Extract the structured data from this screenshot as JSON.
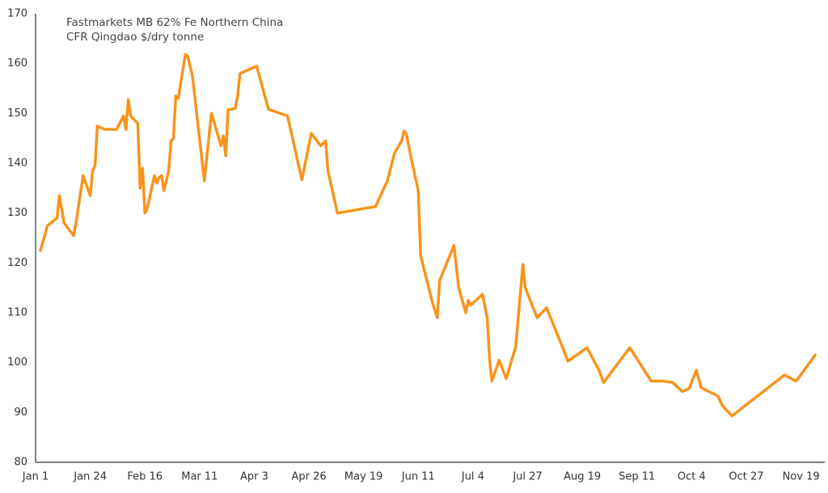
{
  "chart_data": {
    "type": "line",
    "title": [
      "Fastmarkets MB 62% Fe Northern China",
      "CFR Qingdao $/dry tonne"
    ],
    "color": "#f7941d",
    "x": [
      "Jan 3",
      "Jan 4",
      "Jan 6",
      "Jan 10",
      "Jan 11",
      "Jan 13",
      "Jan 17",
      "Jan 18",
      "Jan 21",
      "Jan 24",
      "Jan 25",
      "Jan 26",
      "Jan 27",
      "Jan 30",
      "Feb 4",
      "Feb 7",
      "Feb 8",
      "Feb 9",
      "Feb 10",
      "Feb 13",
      "Feb 14",
      "Feb 15",
      "Feb 16",
      "Feb 17",
      "Feb 20",
      "Feb 21",
      "Feb 22",
      "Feb 23",
      "Feb 24",
      "Feb 26",
      "Feb 27",
      "Feb 28",
      "Mar 1",
      "Mar 2",
      "Mar 5",
      "Mar 6",
      "Mar 8",
      "Mar 13",
      "Mar 16",
      "Mar 20",
      "Mar 21",
      "Mar 22",
      "Mar 23",
      "Mar 26",
      "Mar 27",
      "Mar 28",
      "Apr 4",
      "Apr 9",
      "Apr 17",
      "Apr 23",
      "Apr 27",
      "May 1",
      "May 3",
      "May 4",
      "May 8",
      "May 24",
      "May 29",
      "Jun 1",
      "Jun 4",
      "Jun 5",
      "Jun 6",
      "Jun 8",
      "Jun 11",
      "Jun 12",
      "Jun 17",
      "Jun 19",
      "Jun 20",
      "Jun 26",
      "Jun 28",
      "Jul 1",
      "Jul 2",
      "Jul 3",
      "Jul 8",
      "Jul 10",
      "Jul 11",
      "Jul 12",
      "Jul 15",
      "Jul 18",
      "Jul 22",
      "Jul 25",
      "Jul 26",
      "Jul 31",
      "Aug 4",
      "Aug 13",
      "Aug 21",
      "Aug 26",
      "Aug 28",
      "Sep 4",
      "Sep 8",
      "Sep 17",
      "Sep 22",
      "Sep 26",
      "Sep 30",
      "Oct 3",
      "Oct 6",
      "Oct 8",
      "Oct 15",
      "Oct 17",
      "Oct 21",
      "Nov 12",
      "Nov 17",
      "Nov 25"
    ],
    "values": [
      122.5,
      124,
      127.5,
      129,
      133.5,
      128,
      125.5,
      128,
      137.5,
      133.5,
      138.5,
      139.5,
      147.5,
      146.8,
      146.8,
      149.5,
      146.8,
      152.8,
      149.5,
      148,
      135,
      139,
      130,
      131,
      137.5,
      136,
      137.2,
      137.5,
      134.5,
      138.5,
      144.5,
      145,
      153.5,
      153,
      161.8,
      161.5,
      157.5,
      136.5,
      150,
      143.5,
      145.5,
      141.5,
      150.7,
      151,
      153.5,
      158,
      159.5,
      150.8,
      149.5,
      136.7,
      146,
      143.5,
      144.5,
      138.5,
      130,
      131.3,
      136.5,
      142,
      144.5,
      146.5,
      145.8,
      141,
      134.5,
      121.5,
      112,
      109,
      116.5,
      123.5,
      115,
      110,
      112.5,
      111.5,
      113.7,
      109,
      100.5,
      96.3,
      100.5,
      96.8,
      103.2,
      119.7,
      115,
      109,
      111,
      100.3,
      103,
      98.5,
      96,
      100.5,
      103,
      96.3,
      96.3,
      96,
      94.2,
      94.8,
      98.5,
      95,
      93.3,
      91.3,
      89.3,
      97.5,
      96.3,
      101.5
    ],
    "xlim": [
      "Jan 1",
      "Nov 29"
    ],
    "xticks": [
      "Jan 1",
      "Jan 24",
      "Feb 16",
      "Mar 11",
      "Apr 3",
      "Apr 26",
      "May 19",
      "Jun 11",
      "Jul 4",
      "Jul 27",
      "Aug 19",
      "Sep 11",
      "Oct 4",
      "Oct 27",
      "Nov 19"
    ],
    "ylim": [
      80,
      170
    ],
    "yticks": [
      80,
      90,
      100,
      110,
      120,
      130,
      140,
      150,
      160,
      170
    ],
    "grid": false
  }
}
